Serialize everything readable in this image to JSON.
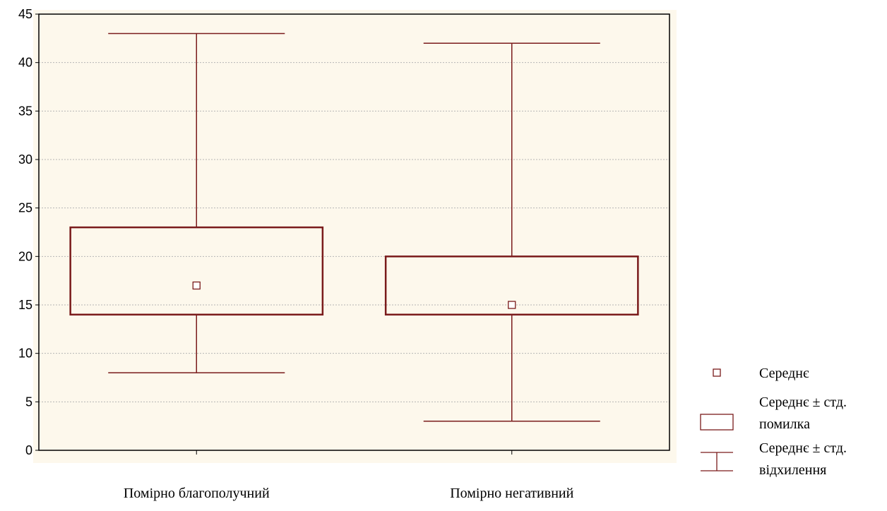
{
  "chart_data": {
    "type": "box",
    "ylim": [
      0,
      45
    ],
    "yticks": [
      0,
      5,
      10,
      15,
      20,
      25,
      30,
      35,
      40,
      45
    ],
    "grid": true,
    "categories": [
      "Помірно благополучний",
      "Помірно негативний"
    ],
    "boxes": [
      {
        "mean": 17,
        "se_low": 14,
        "se_high": 23,
        "sd_low": 8,
        "sd_high": 43
      },
      {
        "mean": 15,
        "se_low": 14,
        "se_high": 20,
        "sd_low": 3,
        "sd_high": 42
      }
    ],
    "legend": {
      "position": "bottom-right",
      "items": [
        {
          "symbol": "mean",
          "lines": [
            "Середнє"
          ]
        },
        {
          "symbol": "box",
          "lines": [
            "Середнє ± стд.",
            "помилка"
          ]
        },
        {
          "symbol": "whisker",
          "lines": [
            "Середнє ± стд.",
            "відхилення"
          ]
        }
      ]
    },
    "colors": {
      "series": "#7a1b1b",
      "plot_background": "#fdf8ec",
      "grid": "#b5b5b5",
      "frame": "#000000"
    }
  }
}
